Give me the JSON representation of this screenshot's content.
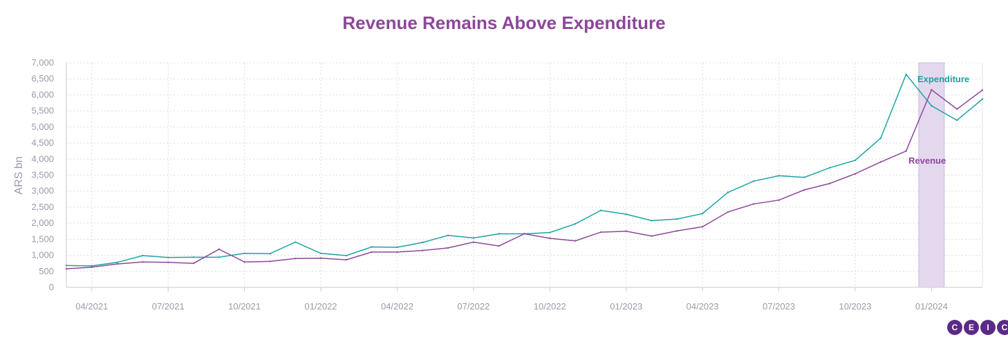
{
  "chart_data": {
    "type": "line",
    "title": "Revenue Remains Above Expenditure",
    "ylabel": "ARS bn",
    "xlabel": "",
    "ylim": [
      0,
      7000
    ],
    "yticks": [
      0,
      500,
      1000,
      1500,
      2000,
      2500,
      3000,
      3500,
      4000,
      4500,
      5000,
      5500,
      6000,
      6500,
      7000
    ],
    "ytick_labels": [
      "0",
      "500",
      "1,000",
      "1,500",
      "2,000",
      "2,500",
      "3,000",
      "3,500",
      "4,000",
      "4,500",
      "5,000",
      "5,500",
      "6,000",
      "6,500",
      "7,000"
    ],
    "x": [
      "2021-03",
      "2021-04",
      "2021-05",
      "2021-06",
      "2021-07",
      "2021-08",
      "2021-09",
      "2021-10",
      "2021-11",
      "2021-12",
      "2022-01",
      "2022-02",
      "2022-03",
      "2022-04",
      "2022-05",
      "2022-06",
      "2022-07",
      "2022-08",
      "2022-09",
      "2022-10",
      "2022-11",
      "2022-12",
      "2023-01",
      "2023-02",
      "2023-03",
      "2023-04",
      "2023-05",
      "2023-06",
      "2023-07",
      "2023-08",
      "2023-09",
      "2023-10",
      "2023-11",
      "2023-12",
      "2024-01",
      "2024-02",
      "2024-03"
    ],
    "xticks": [
      "2021-04",
      "2021-07",
      "2021-10",
      "2022-01",
      "2022-04",
      "2022-07",
      "2022-10",
      "2023-01",
      "2023-04",
      "2023-07",
      "2023-10",
      "2024-01"
    ],
    "xtick_labels": [
      "04/2021",
      "07/2021",
      "10/2021",
      "01/2022",
      "04/2022",
      "07/2022",
      "10/2022",
      "01/2023",
      "04/2023",
      "07/2023",
      "10/2023",
      "01/2024"
    ],
    "series": [
      {
        "name": "Expenditure",
        "color": "#1aa3a3",
        "values": [
          680,
          670,
          780,
          990,
          930,
          940,
          940,
          1060,
          1050,
          1410,
          1060,
          990,
          1260,
          1250,
          1400,
          1620,
          1540,
          1670,
          1670,
          1710,
          1980,
          2400,
          2280,
          2080,
          2130,
          2300,
          2960,
          3310,
          3480,
          3430,
          3730,
          3960,
          4650,
          6640,
          5660,
          5210,
          5870
        ]
      },
      {
        "name": "Revenue",
        "color": "#8c4799",
        "values": [
          580,
          630,
          730,
          790,
          780,
          750,
          1190,
          790,
          810,
          900,
          910,
          860,
          1100,
          1100,
          1150,
          1230,
          1410,
          1290,
          1670,
          1530,
          1450,
          1720,
          1750,
          1600,
          1760,
          1890,
          2350,
          2600,
          2720,
          3040,
          3240,
          3540,
          3910,
          4250,
          6160,
          5560,
          6150
        ]
      }
    ],
    "highlight_period": [
      "2023-12",
      "2024-01"
    ],
    "highlight_color": "#e4d8ee",
    "grid": true,
    "legend": "inline labels near line ends"
  },
  "logo": {
    "letters": [
      "C",
      "E",
      "I",
      "C"
    ]
  }
}
